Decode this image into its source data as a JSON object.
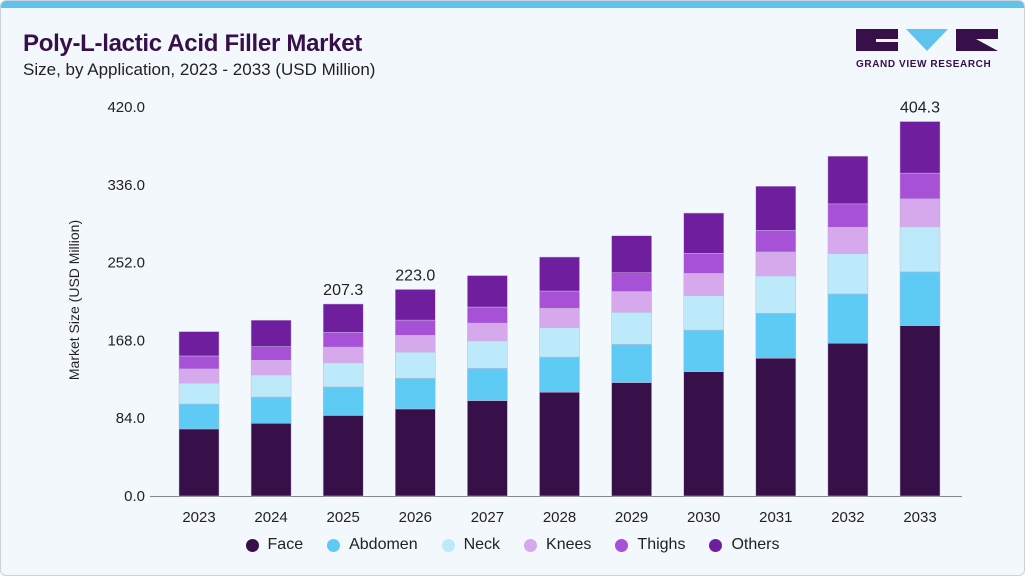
{
  "header": {
    "title": "Poly-L-lactic Acid Filler Market",
    "subtitle": "Size, by Application, 2023 - 2033 (USD Million)"
  },
  "logo": {
    "text": "GRAND VIEW RESEARCH"
  },
  "chart_data": {
    "type": "bar",
    "stacked": true,
    "title": "Poly-L-lactic Acid Filler Market",
    "subtitle": "Size, by Application, 2023 - 2033 (USD Million)",
    "xlabel": "",
    "ylabel": "Market Size (USD Million)",
    "ylim": [
      0,
      420
    ],
    "yticks": [
      "0.0",
      "84.0",
      "168.0",
      "252.0",
      "336.0",
      "420.0"
    ],
    "ytick_values": [
      0,
      84,
      168,
      252,
      336,
      420
    ],
    "grid": false,
    "legend_position": "bottom",
    "categories": [
      "2023",
      "2024",
      "2025",
      "2026",
      "2027",
      "2028",
      "2029",
      "2030",
      "2031",
      "2032",
      "2033"
    ],
    "series": [
      {
        "name": "Face",
        "color": "#37104a",
        "values": [
          72.4,
          78.5,
          87,
          94,
          103,
          112,
          122.5,
          134.2,
          148.7,
          164.9,
          184
        ]
      },
      {
        "name": "Abdomen",
        "color": "#5ecbf5",
        "values": [
          27,
          28.4,
          30.8,
          33.2,
          35,
          38,
          41.3,
          45,
          48.6,
          53.3,
          58
        ]
      },
      {
        "name": "Neck",
        "color": "#bdeafa",
        "values": [
          22.4,
          23.8,
          26,
          28.1,
          29.5,
          31.8,
          34.5,
          37,
          40.3,
          43.5,
          48.6
        ]
      },
      {
        "name": "Knees",
        "color": "#d5a9ec",
        "values": [
          15.4,
          15.9,
          17,
          18.2,
          19.2,
          20.8,
          22.5,
          24.2,
          25.9,
          28.5,
          30.2
        ]
      },
      {
        "name": "Thighs",
        "color": "#a651d6",
        "values": [
          14,
          14.7,
          16,
          16.4,
          17.3,
          18.7,
          20.3,
          21.6,
          23.4,
          25.2,
          27.8
        ]
      },
      {
        "name": "Others",
        "color": "#6f1f9e",
        "values": [
          26.3,
          28.5,
          30.5,
          33.1,
          34,
          36.7,
          39.9,
          43.5,
          47.5,
          51.5,
          55.7
        ]
      }
    ],
    "data_labels": [
      {
        "category": "2025",
        "label": "207.3"
      },
      {
        "category": "2026",
        "label": "223.0"
      },
      {
        "category": "2033",
        "label": "404.3"
      }
    ]
  }
}
